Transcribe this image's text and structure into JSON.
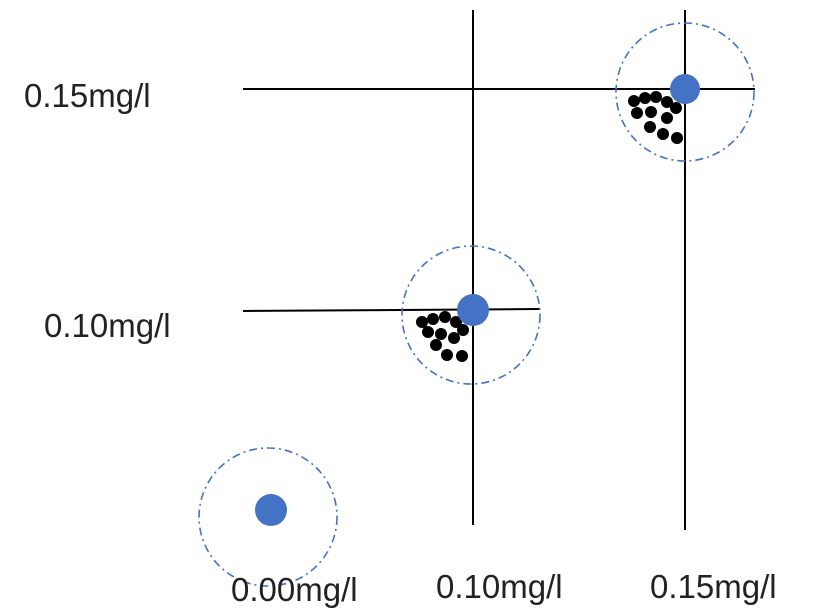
{
  "labels": {
    "y_upper": "0.15mg/l",
    "y_lower": "0.10mg/l",
    "x_zero": "0.00mg/l",
    "x_mid": "0.10mg/l",
    "x_high": "0.15mg/l"
  },
  "colors": {
    "blue_dot": "#4472C4",
    "dashed_circle": "#4472C4",
    "cluster_dot": "#000000",
    "line": "#000000"
  }
}
